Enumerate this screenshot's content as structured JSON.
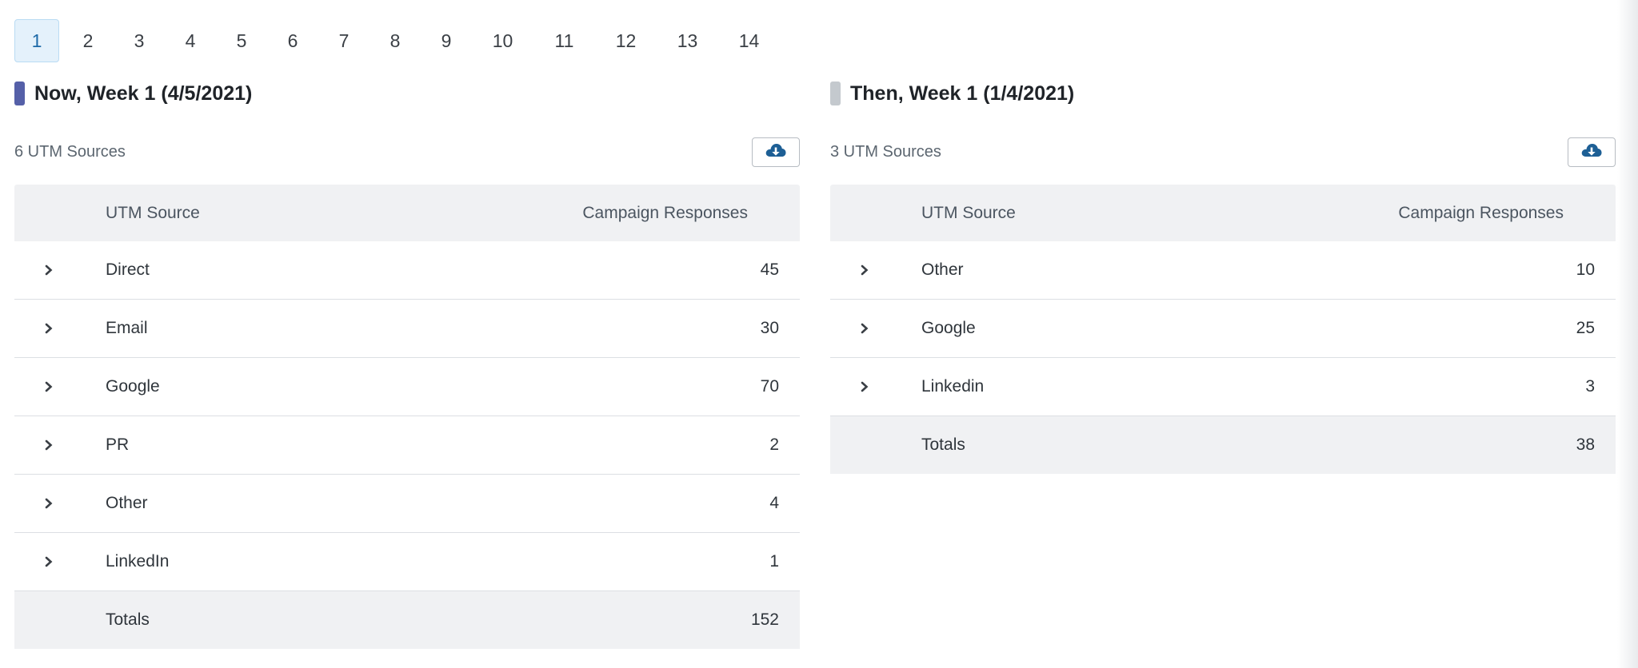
{
  "week_tabs": [
    "1",
    "2",
    "3",
    "4",
    "5",
    "6",
    "7",
    "8",
    "9",
    "10",
    "11",
    "12",
    "13",
    "14"
  ],
  "active_tab": "1",
  "colors": {
    "now_marker": "#5560a8",
    "then_marker": "#c4c9ce",
    "download_icon": "#1d5f95",
    "active_tab_bg": "#e4f1fb"
  },
  "now": {
    "title": "Now, Week 1 (4/5/2021)",
    "source_count": "6 UTM Sources",
    "download_icon": "cloud-download-icon",
    "headers": {
      "source": "UTM Source",
      "responses": "Campaign Responses"
    },
    "rows": [
      {
        "source": "Direct",
        "value": "45"
      },
      {
        "source": "Email",
        "value": "30"
      },
      {
        "source": "Google",
        "value": "70"
      },
      {
        "source": "PR",
        "value": "2"
      },
      {
        "source": "Other",
        "value": "4"
      },
      {
        "source": "LinkedIn",
        "value": "1"
      }
    ],
    "totals": {
      "label": "Totals",
      "value": "152"
    }
  },
  "then": {
    "title": "Then, Week 1 (1/4/2021)",
    "source_count": "3 UTM Sources",
    "download_icon": "cloud-download-icon",
    "headers": {
      "source": "UTM Source",
      "responses": "Campaign Responses"
    },
    "rows": [
      {
        "source": "Other",
        "value": "10"
      },
      {
        "source": "Google",
        "value": "25"
      },
      {
        "source": "Linkedin",
        "value": "3"
      }
    ],
    "totals": {
      "label": "Totals",
      "value": "38"
    }
  }
}
